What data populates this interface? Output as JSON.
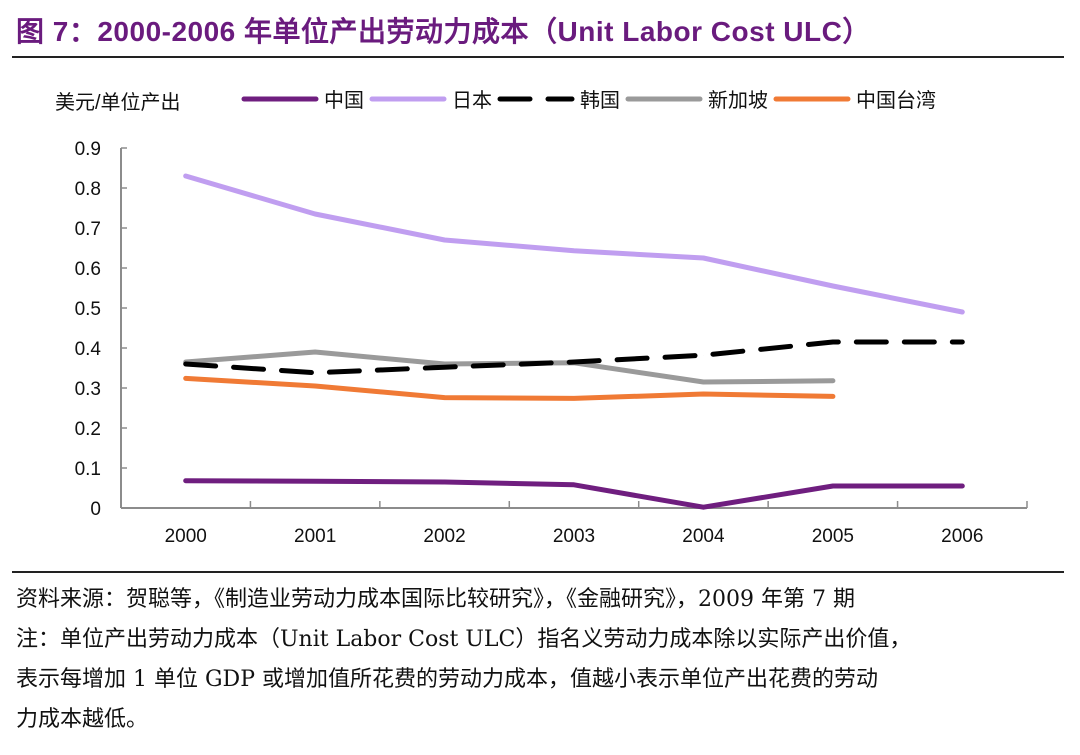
{
  "header": {
    "title": "图 7：2000-2006 年单位产出劳动力成本（Unit Labor Cost ULC）"
  },
  "chart_data": {
    "type": "line",
    "title": "图 7：2000-2006 年单位产出劳动力成本（Unit Labor Cost ULC）",
    "ylabel": "美元/单位产出",
    "xlabel": "",
    "ylim": [
      0,
      0.9
    ],
    "yticks": [
      "0",
      "0.1",
      "0.2",
      "0.3",
      "0.4",
      "0.5",
      "0.6",
      "0.7",
      "0.8",
      "0.9"
    ],
    "categories": [
      "2000",
      "2001",
      "2002",
      "2003",
      "2004",
      "2005",
      "2006"
    ],
    "grid": false,
    "legend_position": "top",
    "series": [
      {
        "name": "中国",
        "color": "#6f1e7f",
        "dash": "solid",
        "values": [
          0.068,
          0.067,
          0.065,
          0.058,
          0.002,
          0.055,
          0.055
        ]
      },
      {
        "name": "日本",
        "color": "#c09ef0",
        "dash": "solid",
        "values": [
          0.83,
          0.735,
          0.67,
          0.643,
          0.625,
          0.555,
          0.49
        ]
      },
      {
        "name": "韩国",
        "color": "#000000",
        "dash": "dashed",
        "values": [
          0.36,
          0.338,
          0.352,
          0.365,
          0.382,
          0.415,
          0.415
        ]
      },
      {
        "name": "新加坡",
        "color": "#9a9a9a",
        "dash": "solid",
        "values": [
          0.365,
          0.39,
          0.36,
          0.363,
          0.315,
          0.318,
          null
        ]
      },
      {
        "name": "中国台湾",
        "color": "#f07a35",
        "dash": "solid",
        "values": [
          0.324,
          0.305,
          0.276,
          0.274,
          0.285,
          0.279,
          null
        ]
      }
    ]
  },
  "notes": {
    "source": "资料来源：贺聪等，《制造业劳动力成本国际比较研究》，《金融研究》，2009 年第 7 期",
    "note_line1": "注：单位产出劳动力成本（Unit Labor Cost ULC）指名义劳动力成本除以实际产出价值，",
    "note_line2": "表示每增加 1 单位 GDP 或增加值所花费的劳动力成本，值越小表示单位产出花费的劳动",
    "note_line3": "力成本越低。"
  }
}
